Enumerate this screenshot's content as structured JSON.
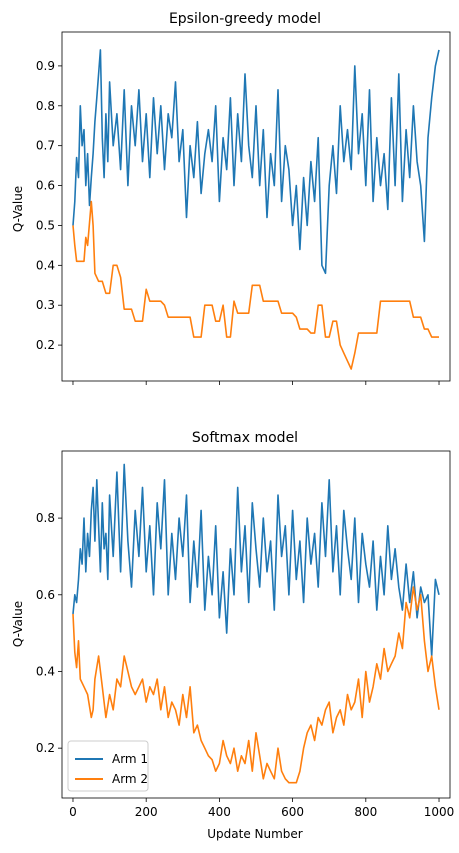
{
  "colors": {
    "arm1": "#1f77b4",
    "arm2": "#ff7f0e"
  },
  "chart_data": [
    {
      "type": "line",
      "title": "Epsilon-greedy model",
      "xlabel": "",
      "ylabel": "Q-Value",
      "xlim": [
        -30,
        1030
      ],
      "ylim": [
        0.11,
        0.985
      ],
      "xticks": [
        0,
        200,
        400,
        600,
        800,
        1000
      ],
      "show_xtick_labels": false,
      "yticks": [
        0.2,
        0.3,
        0.4,
        0.5,
        0.6,
        0.7,
        0.8,
        0.9
      ],
      "ytick_labels": [
        "0.2",
        "0.3",
        "0.4",
        "0.5",
        "0.6",
        "0.7",
        "0.8",
        "0.9"
      ],
      "grid": false,
      "series": [
        {
          "name": "Arm 1",
          "color": "#1f77b4",
          "values_description_note": "",
          "x": [
            0,
            5,
            10,
            15,
            20,
            25,
            30,
            35,
            40,
            45,
            50,
            55,
            60,
            65,
            70,
            75,
            80,
            85,
            90,
            95,
            100,
            110,
            120,
            130,
            140,
            150,
            160,
            170,
            180,
            190,
            200,
            210,
            220,
            230,
            240,
            250,
            260,
            270,
            280,
            290,
            300,
            310,
            320,
            330,
            340,
            350,
            360,
            370,
            380,
            390,
            400,
            410,
            420,
            430,
            440,
            450,
            460,
            470,
            480,
            490,
            500,
            510,
            520,
            530,
            540,
            550,
            560,
            570,
            580,
            590,
            600,
            610,
            620,
            630,
            640,
            650,
            660,
            670,
            680,
            690,
            700,
            710,
            720,
            730,
            740,
            750,
            760,
            770,
            780,
            790,
            800,
            810,
            820,
            830,
            840,
            850,
            860,
            870,
            880,
            890,
            900,
            910,
            920,
            930,
            940,
            950,
            960,
            970,
            980,
            990,
            1000
          ],
          "y": [
            0.5,
            0.56,
            0.67,
            0.62,
            0.8,
            0.7,
            0.74,
            0.6,
            0.68,
            0.55,
            0.62,
            0.68,
            0.76,
            0.82,
            0.88,
            0.94,
            0.72,
            0.62,
            0.78,
            0.66,
            0.86,
            0.7,
            0.78,
            0.64,
            0.84,
            0.6,
            0.8,
            0.7,
            0.84,
            0.66,
            0.78,
            0.62,
            0.82,
            0.68,
            0.8,
            0.64,
            0.78,
            0.72,
            0.86,
            0.66,
            0.74,
            0.52,
            0.7,
            0.62,
            0.76,
            0.58,
            0.68,
            0.74,
            0.66,
            0.8,
            0.56,
            0.72,
            0.64,
            0.82,
            0.6,
            0.78,
            0.66,
            0.88,
            0.7,
            0.62,
            0.8,
            0.6,
            0.74,
            0.52,
            0.68,
            0.6,
            0.84,
            0.56,
            0.7,
            0.64,
            0.5,
            0.6,
            0.44,
            0.62,
            0.5,
            0.66,
            0.56,
            0.72,
            0.4,
            0.38,
            0.6,
            0.7,
            0.58,
            0.8,
            0.66,
            0.74,
            0.64,
            0.9,
            0.68,
            0.78,
            0.6,
            0.84,
            0.56,
            0.72,
            0.6,
            0.68,
            0.54,
            0.82,
            0.6,
            0.88,
            0.56,
            0.74,
            0.62,
            0.8,
            0.66,
            0.6,
            0.46,
            0.72,
            0.82,
            0.9,
            0.94
          ]
        },
        {
          "name": "Arm 2",
          "color": "#ff7f0e",
          "x": [
            0,
            5,
            10,
            20,
            30,
            35,
            40,
            50,
            55,
            60,
            70,
            80,
            90,
            100,
            110,
            120,
            130,
            140,
            150,
            160,
            170,
            180,
            190,
            200,
            210,
            220,
            230,
            240,
            250,
            260,
            270,
            280,
            290,
            300,
            310,
            320,
            330,
            340,
            350,
            360,
            370,
            380,
            390,
            400,
            410,
            420,
            430,
            440,
            450,
            460,
            470,
            480,
            490,
            500,
            510,
            520,
            530,
            540,
            550,
            560,
            570,
            580,
            590,
            600,
            610,
            620,
            630,
            640,
            650,
            660,
            670,
            680,
            690,
            700,
            710,
            720,
            730,
            740,
            750,
            760,
            770,
            780,
            790,
            800,
            810,
            820,
            830,
            840,
            850,
            860,
            870,
            880,
            890,
            900,
            910,
            920,
            930,
            940,
            950,
            960,
            970,
            980,
            990,
            1000
          ],
          "y": [
            0.5,
            0.45,
            0.41,
            0.41,
            0.41,
            0.47,
            0.45,
            0.56,
            0.5,
            0.38,
            0.36,
            0.36,
            0.33,
            0.33,
            0.4,
            0.4,
            0.37,
            0.29,
            0.29,
            0.29,
            0.26,
            0.26,
            0.26,
            0.34,
            0.31,
            0.31,
            0.31,
            0.31,
            0.3,
            0.27,
            0.27,
            0.27,
            0.27,
            0.27,
            0.27,
            0.27,
            0.22,
            0.22,
            0.22,
            0.3,
            0.3,
            0.3,
            0.26,
            0.26,
            0.3,
            0.22,
            0.22,
            0.31,
            0.28,
            0.28,
            0.28,
            0.28,
            0.35,
            0.35,
            0.35,
            0.31,
            0.31,
            0.31,
            0.31,
            0.31,
            0.28,
            0.28,
            0.28,
            0.28,
            0.27,
            0.24,
            0.24,
            0.24,
            0.23,
            0.23,
            0.3,
            0.3,
            0.22,
            0.22,
            0.26,
            0.26,
            0.2,
            0.18,
            0.16,
            0.14,
            0.18,
            0.23,
            0.23,
            0.23,
            0.23,
            0.23,
            0.23,
            0.31,
            0.31,
            0.31,
            0.31,
            0.31,
            0.31,
            0.31,
            0.31,
            0.31,
            0.27,
            0.27,
            0.27,
            0.24,
            0.24,
            0.22,
            0.22,
            0.22
          ]
        }
      ]
    },
    {
      "type": "line",
      "title": "Softmax model",
      "xlabel": "Update Number",
      "ylabel": "Q-Value",
      "xlim": [
        -30,
        1030
      ],
      "ylim": [
        0.07,
        0.975
      ],
      "xticks": [
        0,
        200,
        400,
        600,
        800,
        1000
      ],
      "xtick_labels": [
        "0",
        "200",
        "400",
        "600",
        "800",
        "1000"
      ],
      "show_xtick_labels": true,
      "yticks": [
        0.2,
        0.4,
        0.6,
        0.8
      ],
      "ytick_labels": [
        "0.2",
        "0.4",
        "0.6",
        "0.8"
      ],
      "grid": false,
      "legend": {
        "placement": "lower-left",
        "entries": [
          "Arm 1",
          "Arm 2"
        ]
      },
      "series": [
        {
          "name": "Arm 1",
          "color": "#1f77b4",
          "x": [
            0,
            5,
            10,
            15,
            20,
            25,
            30,
            35,
            40,
            45,
            50,
            55,
            60,
            65,
            70,
            75,
            80,
            85,
            90,
            95,
            100,
            110,
            120,
            130,
            140,
            150,
            160,
            170,
            180,
            190,
            200,
            210,
            220,
            230,
            240,
            250,
            260,
            270,
            280,
            290,
            300,
            310,
            320,
            330,
            340,
            350,
            360,
            370,
            380,
            390,
            400,
            410,
            420,
            430,
            440,
            450,
            460,
            470,
            480,
            490,
            500,
            510,
            520,
            530,
            540,
            550,
            560,
            570,
            580,
            590,
            600,
            610,
            620,
            630,
            640,
            650,
            660,
            670,
            680,
            690,
            700,
            710,
            720,
            730,
            740,
            750,
            760,
            770,
            780,
            790,
            800,
            810,
            820,
            830,
            840,
            850,
            860,
            870,
            880,
            890,
            900,
            910,
            920,
            930,
            940,
            950,
            960,
            970,
            980,
            990,
            1000
          ],
          "y": [
            0.55,
            0.6,
            0.58,
            0.64,
            0.72,
            0.68,
            0.8,
            0.66,
            0.76,
            0.7,
            0.82,
            0.88,
            0.74,
            0.9,
            0.78,
            0.66,
            0.84,
            0.72,
            0.76,
            0.64,
            0.86,
            0.7,
            0.92,
            0.66,
            0.94,
            0.74,
            0.62,
            0.82,
            0.7,
            0.88,
            0.66,
            0.78,
            0.6,
            0.84,
            0.72,
            0.9,
            0.6,
            0.76,
            0.64,
            0.8,
            0.7,
            0.86,
            0.58,
            0.74,
            0.62,
            0.82,
            0.56,
            0.7,
            0.6,
            0.78,
            0.54,
            0.66,
            0.5,
            0.72,
            0.6,
            0.88,
            0.66,
            0.78,
            0.58,
            0.84,
            0.72,
            0.62,
            0.8,
            0.66,
            0.74,
            0.56,
            0.86,
            0.7,
            0.78,
            0.6,
            0.82,
            0.64,
            0.74,
            0.58,
            0.8,
            0.68,
            0.76,
            0.62,
            0.84,
            0.7,
            0.9,
            0.66,
            0.78,
            0.6,
            0.82,
            0.72,
            0.64,
            0.8,
            0.58,
            0.76,
            0.68,
            0.62,
            0.74,
            0.56,
            0.7,
            0.6,
            0.78,
            0.64,
            0.72,
            0.62,
            0.56,
            0.68,
            0.58,
            0.66,
            0.54,
            0.62,
            0.58,
            0.6,
            0.44,
            0.64,
            0.6
          ]
        },
        {
          "name": "Arm 2",
          "color": "#ff7f0e",
          "x": [
            0,
            5,
            10,
            15,
            20,
            30,
            40,
            50,
            55,
            60,
            70,
            80,
            90,
            100,
            110,
            120,
            130,
            140,
            150,
            160,
            170,
            180,
            190,
            200,
            210,
            220,
            230,
            240,
            250,
            260,
            270,
            280,
            290,
            300,
            310,
            320,
            330,
            340,
            350,
            360,
            370,
            380,
            390,
            400,
            410,
            420,
            430,
            440,
            450,
            460,
            470,
            480,
            490,
            500,
            510,
            520,
            530,
            540,
            550,
            560,
            570,
            580,
            590,
            600,
            610,
            620,
            630,
            640,
            650,
            660,
            670,
            680,
            690,
            700,
            710,
            720,
            730,
            740,
            750,
            760,
            770,
            780,
            790,
            800,
            810,
            820,
            830,
            840,
            850,
            860,
            870,
            880,
            890,
            900,
            910,
            920,
            930,
            940,
            950,
            960,
            970,
            980,
            990,
            1000
          ],
          "y": [
            0.55,
            0.45,
            0.41,
            0.48,
            0.38,
            0.36,
            0.34,
            0.28,
            0.3,
            0.38,
            0.44,
            0.36,
            0.28,
            0.34,
            0.3,
            0.38,
            0.36,
            0.44,
            0.4,
            0.36,
            0.34,
            0.36,
            0.38,
            0.32,
            0.36,
            0.34,
            0.38,
            0.3,
            0.36,
            0.28,
            0.32,
            0.3,
            0.26,
            0.34,
            0.28,
            0.36,
            0.24,
            0.26,
            0.22,
            0.2,
            0.18,
            0.17,
            0.14,
            0.16,
            0.22,
            0.18,
            0.16,
            0.2,
            0.14,
            0.18,
            0.16,
            0.22,
            0.14,
            0.24,
            0.18,
            0.12,
            0.16,
            0.14,
            0.12,
            0.2,
            0.14,
            0.12,
            0.11,
            0.11,
            0.11,
            0.14,
            0.2,
            0.24,
            0.26,
            0.22,
            0.28,
            0.26,
            0.3,
            0.32,
            0.24,
            0.28,
            0.3,
            0.26,
            0.34,
            0.3,
            0.32,
            0.38,
            0.28,
            0.4,
            0.32,
            0.36,
            0.42,
            0.38,
            0.46,
            0.4,
            0.42,
            0.44,
            0.5,
            0.46,
            0.58,
            0.54,
            0.62,
            0.56,
            0.6,
            0.48,
            0.4,
            0.44,
            0.36,
            0.3
          ]
        }
      ]
    }
  ]
}
